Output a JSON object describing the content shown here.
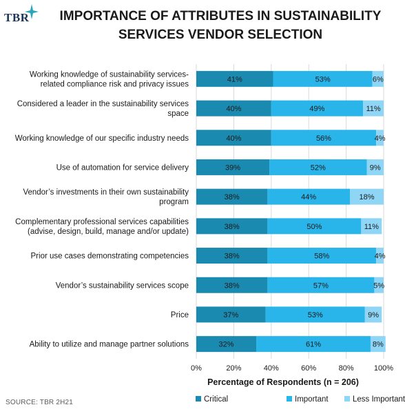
{
  "header": {
    "logo_text": "TBR",
    "title_line1": "IMPORTANCE OF ATTRIBUTES IN SUSTAINABILITY",
    "title_line2": "SERVICES VENDOR SELECTION"
  },
  "source": "SOURCE: TBR 2H21",
  "colors": {
    "critical": "#1b8ab0",
    "important": "#29b4ea",
    "less_important": "#8fd6f6",
    "gridline": "#d9d9d9",
    "logo_star": "#2aa6b8"
  },
  "chart_data": {
    "type": "bar",
    "orientation": "horizontal",
    "stacked": true,
    "xlabel": "Percentage of Respondents (n = 206)",
    "xlim": [
      0,
      100
    ],
    "x_ticks": [
      "0%",
      "20%",
      "40%",
      "60%",
      "80%",
      "100%"
    ],
    "legend_position": "bottom",
    "grid": true,
    "categories": [
      [
        "Working knowledge of sustainability services-",
        "related compliance risk and privacy issues"
      ],
      [
        "Considered a leader in the sustainability services",
        "space"
      ],
      [
        "Working knowledge of our specific industry needs"
      ],
      [
        "Use of automation for service delivery"
      ],
      [
        "Vendor’s investments in their own sustainability",
        "program"
      ],
      [
        "Complementary professional services capabilities",
        "(advise, design, build, manage and/or update)"
      ],
      [
        "Prior use cases demonstrating competencies"
      ],
      [
        "Vendor’s sustainability services scope"
      ],
      [
        "Price"
      ],
      [
        "Ability to utilize and manage partner solutions"
      ]
    ],
    "series": [
      {
        "name": "Critical",
        "color_key": "critical",
        "values": [
          41,
          40,
          40,
          39,
          38,
          38,
          38,
          38,
          37,
          32
        ],
        "labels": [
          "41%",
          "40%",
          "40%",
          "39%",
          "38%",
          "38%",
          "38%",
          "38%",
          "37%",
          "32%"
        ]
      },
      {
        "name": "Important",
        "color_key": "important",
        "values": [
          53,
          49,
          56,
          52,
          44,
          50,
          58,
          57,
          53,
          61
        ],
        "labels": [
          "53%",
          "49%",
          "56%",
          "52%",
          "44%",
          "50%",
          "58%",
          "57%",
          "53%",
          "61%"
        ]
      },
      {
        "name": "Less Important",
        "color_key": "less_important",
        "values": [
          6,
          11,
          4,
          9,
          18,
          11,
          4,
          5,
          9,
          8
        ],
        "labels": [
          "6%",
          "11%",
          "4%",
          "9%",
          "18%",
          "11%",
          "4%",
          "5%",
          "9%",
          "8%"
        ]
      }
    ]
  }
}
